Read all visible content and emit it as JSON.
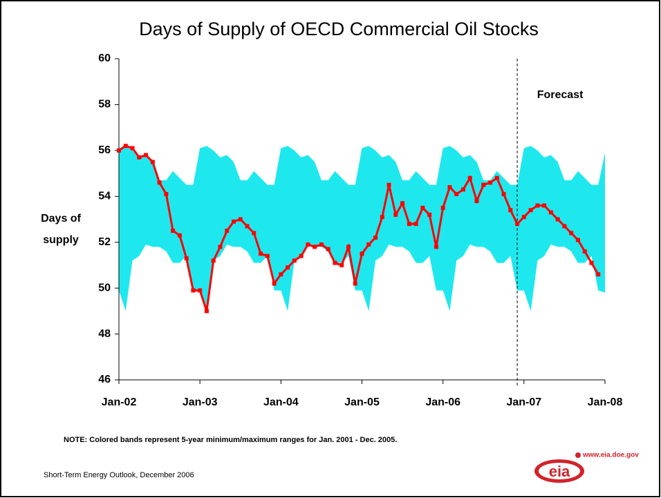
{
  "chart_data": {
    "type": "line",
    "title": "Days of Supply of OECD Commercial Oil Stocks",
    "y_label_lines": [
      "Days of",
      "supply"
    ],
    "note": "NOTE:  Colored bands represent 5-year minimum/maximum ranges for Jan. 2001 - Dec. 2005.",
    "source": "Short-Term Energy Outlook, December 2006",
    "logo_text": "eia",
    "logo_url": "www.eia.doe.gov",
    "annotation": {
      "text": "Forecast",
      "x": "2006-12"
    },
    "x": [
      "2002-01",
      "2002-02",
      "2002-03",
      "2002-04",
      "2002-05",
      "2002-06",
      "2002-07",
      "2002-08",
      "2002-09",
      "2002-10",
      "2002-11",
      "2002-12",
      "2003-01",
      "2003-02",
      "2003-03",
      "2003-04",
      "2003-05",
      "2003-06",
      "2003-07",
      "2003-08",
      "2003-09",
      "2003-10",
      "2003-11",
      "2003-12",
      "2004-01",
      "2004-02",
      "2004-03",
      "2004-04",
      "2004-05",
      "2004-06",
      "2004-07",
      "2004-08",
      "2004-09",
      "2004-10",
      "2004-11",
      "2004-12",
      "2005-01",
      "2005-02",
      "2005-03",
      "2005-04",
      "2005-05",
      "2005-06",
      "2005-07",
      "2005-08",
      "2005-09",
      "2005-10",
      "2005-11",
      "2005-12",
      "2006-01",
      "2006-02",
      "2006-03",
      "2006-04",
      "2006-05",
      "2006-06",
      "2006-07",
      "2006-08",
      "2006-09",
      "2006-10",
      "2006-11",
      "2006-12",
      "2007-01",
      "2007-02",
      "2007-03",
      "2007-04",
      "2007-05",
      "2007-06",
      "2007-07",
      "2007-08",
      "2007-09",
      "2007-10",
      "2007-11",
      "2007-12",
      "2008-01"
    ],
    "series": [
      {
        "color": "#ff0000",
        "values": [
          56.0,
          56.2,
          56.1,
          55.7,
          55.8,
          55.5,
          54.6,
          54.1,
          52.5,
          52.3,
          51.3,
          49.9,
          49.9,
          49.0,
          51.2,
          51.8,
          52.5,
          52.9,
          53.0,
          52.7,
          52.4,
          51.5,
          51.4,
          50.2,
          50.6,
          50.9,
          51.2,
          51.4,
          51.9,
          51.8,
          51.9,
          51.7,
          51.1,
          51.0,
          51.8,
          50.2,
          51.5,
          51.9,
          52.2,
          53.1,
          54.5,
          53.2,
          53.7,
          52.8,
          52.8,
          53.5,
          53.2,
          51.8,
          53.5,
          54.4,
          54.1,
          54.3,
          54.8,
          53.8,
          54.5,
          54.6,
          54.8,
          54.1,
          53.4,
          52.8,
          53.1,
          53.4,
          53.6,
          53.6,
          53.3,
          53.0,
          52.7,
          52.4,
          52.1,
          51.6,
          51.1,
          50.6,
          null
        ]
      }
    ],
    "band": {
      "color": "#1ee8ee",
      "max": [
        56.1,
        56.2,
        56.0,
        55.7,
        55.8,
        55.5,
        54.7,
        54.7,
        55.1,
        54.8,
        54.5,
        54.5,
        56.1,
        56.2,
        56.0,
        55.7,
        55.8,
        55.5,
        54.7,
        54.7,
        55.1,
        54.8,
        54.5,
        54.5,
        56.1,
        56.2,
        56.0,
        55.7,
        55.8,
        55.5,
        54.7,
        54.7,
        55.1,
        54.8,
        54.5,
        54.5,
        56.1,
        56.2,
        56.0,
        55.7,
        55.8,
        55.5,
        54.7,
        54.7,
        55.1,
        54.8,
        54.5,
        54.5,
        56.1,
        56.2,
        56.0,
        55.7,
        55.8,
        55.5,
        54.7,
        54.7,
        55.1,
        54.8,
        54.5,
        54.5,
        56.1,
        56.2,
        56.0,
        55.7,
        55.8,
        55.5,
        54.7,
        54.7,
        55.1,
        54.8,
        54.5,
        54.5,
        55.9
      ],
      "min": [
        49.9,
        49.0,
        51.2,
        51.4,
        51.9,
        51.8,
        51.8,
        51.6,
        51.1,
        51.1,
        51.4,
        49.9,
        49.9,
        49.0,
        51.2,
        51.4,
        51.9,
        51.8,
        51.8,
        51.6,
        51.1,
        51.1,
        51.4,
        49.9,
        49.9,
        49.0,
        51.2,
        51.4,
        51.9,
        51.8,
        51.8,
        51.6,
        51.1,
        51.1,
        51.4,
        49.9,
        49.9,
        49.0,
        51.2,
        51.4,
        51.9,
        51.8,
        51.8,
        51.6,
        51.1,
        51.1,
        51.4,
        49.9,
        49.9,
        49.0,
        51.2,
        51.4,
        51.9,
        51.8,
        51.8,
        51.6,
        51.1,
        51.1,
        51.4,
        49.9,
        49.9,
        49.0,
        51.2,
        51.4,
        51.9,
        51.8,
        51.8,
        51.6,
        51.1,
        51.1,
        51.4,
        49.9,
        49.8
      ]
    },
    "xlim": [
      "2002-01",
      "2008-01"
    ],
    "xticks": [
      {
        "value": "2002-01",
        "label": "Jan-02"
      },
      {
        "value": "2003-01",
        "label": "Jan-03"
      },
      {
        "value": "2004-01",
        "label": "Jan-04"
      },
      {
        "value": "2005-01",
        "label": "Jan-05"
      },
      {
        "value": "2006-01",
        "label": "Jan-06"
      },
      {
        "value": "2007-01",
        "label": "Jan-07"
      },
      {
        "value": "2008-01",
        "label": "Jan-08"
      }
    ],
    "ylim": [
      46,
      60
    ],
    "yticks": [
      46,
      48,
      50,
      52,
      54,
      56,
      58,
      60
    ],
    "grid": false
  }
}
